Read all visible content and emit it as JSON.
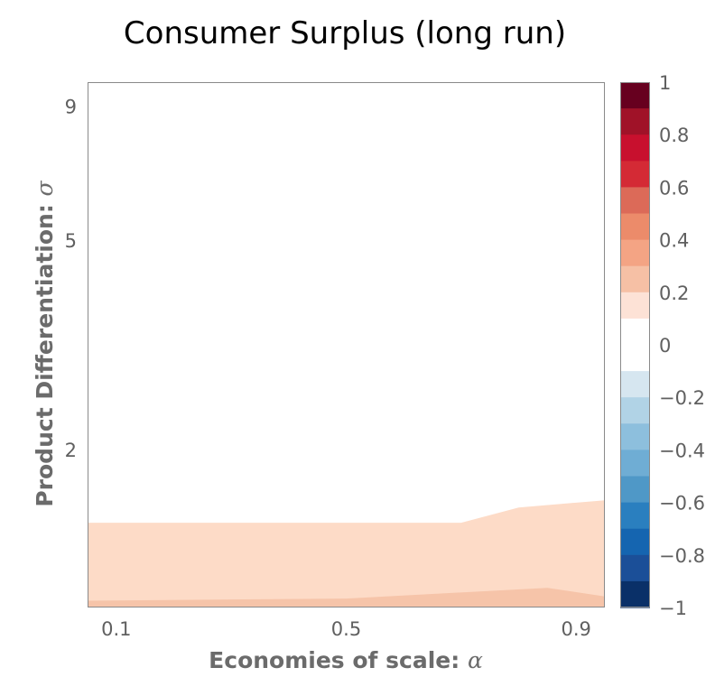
{
  "chart_data": {
    "type": "heatmap",
    "title": "Consumer Surplus (long run)",
    "xlabel": "Economies of scale: ",
    "xlabel_symbol": "α",
    "ylabel": "Product Differentiation: ",
    "ylabel_symbol": "σ",
    "x_ticks": [
      0.1,
      0.5,
      0.9
    ],
    "x_tick_labels": [
      "0.1",
      "0.5",
      "0.9"
    ],
    "xlim": [
      0.05,
      0.95
    ],
    "y_ticks": [
      2,
      5,
      9
    ],
    "y_tick_labels": [
      "2",
      "5",
      "9"
    ],
    "ylim": [
      1,
      10
    ],
    "contour_regions": [
      {
        "level": 0.1,
        "color": "#fddbc7",
        "upper_boundary": [
          [
            0.05,
            1.45
          ],
          [
            0.7,
            1.45
          ],
          [
            0.8,
            1.55
          ],
          [
            0.95,
            1.6
          ]
        ]
      },
      {
        "level": 0.2,
        "color": "#f6c4a9",
        "upper_boundary": [
          [
            0.05,
            1.03
          ],
          [
            0.5,
            1.04
          ],
          [
            0.85,
            1.09
          ],
          [
            0.95,
            1.05
          ]
        ]
      }
    ],
    "colorbar": {
      "ticks": [
        1,
        0.8,
        0.6,
        0.4,
        0.2,
        0,
        -0.2,
        -0.4,
        -0.6,
        -0.8,
        -1
      ],
      "tick_labels": [
        "1",
        "0.8",
        "0.6",
        "0.4",
        "0.2",
        "0",
        "−0.2",
        "−0.4",
        "−0.6",
        "−0.8",
        "−1"
      ],
      "range": [
        -1,
        1
      ],
      "colors_top_to_bottom": [
        "#67001f",
        "#a01228",
        "#c8102e",
        "#d42a35",
        "#dc6a58",
        "#ec8b6a",
        "#f4a484",
        "#f6c0a5",
        "#fde2d6",
        "#ffffff",
        "#ffffff",
        "#d6e6f0",
        "#b1d3e6",
        "#8dbfdd",
        "#6fadd4",
        "#4f98c7",
        "#2a7fbf",
        "#1565b0",
        "#1b4f98",
        "#0a3068"
      ]
    }
  }
}
